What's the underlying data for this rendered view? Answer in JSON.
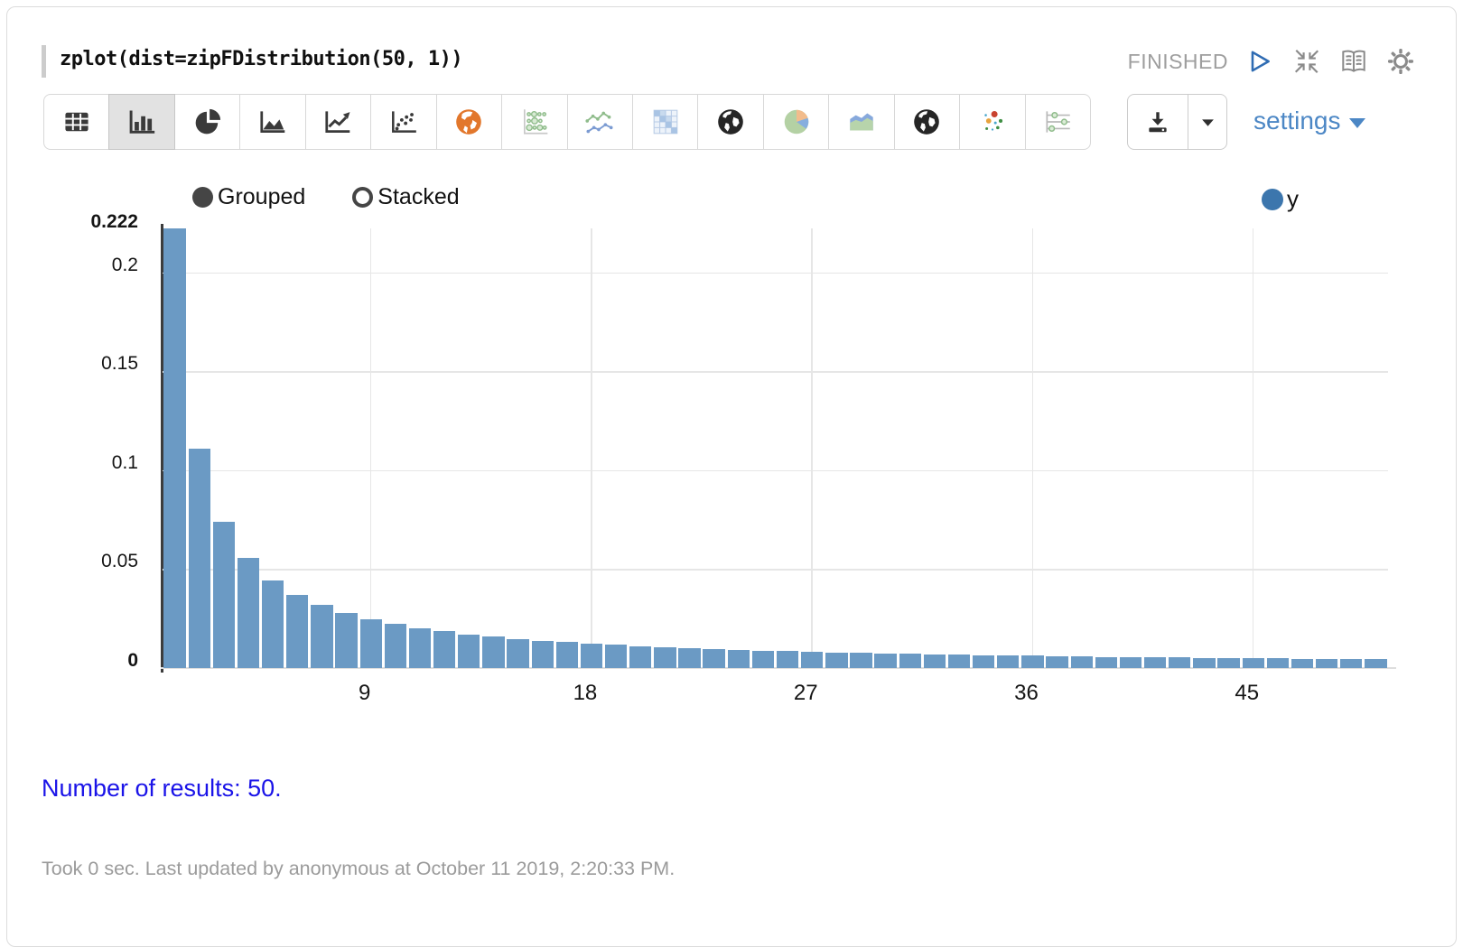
{
  "paragraph": {
    "code": "zplot(dist=zipFDistribution(50, 1))",
    "status": "FINISHED",
    "controls": [
      {
        "icon": "run-icon"
      },
      {
        "icon": "collapse-icon"
      },
      {
        "icon": "book-icon"
      },
      {
        "icon": "gear-icon"
      }
    ]
  },
  "toolbar": {
    "buttons": [
      {
        "icon": "table-icon",
        "active": false
      },
      {
        "icon": "bar-chart-icon",
        "active": true
      },
      {
        "icon": "pie-chart-icon",
        "active": false
      },
      {
        "icon": "area-chart-icon",
        "active": false
      },
      {
        "icon": "line-chart-icon",
        "active": false
      },
      {
        "icon": "scatter-chart-icon",
        "active": false
      },
      {
        "icon": "globe-orange-icon",
        "active": false
      },
      {
        "icon": "bubble-chart-icon",
        "active": false
      },
      {
        "icon": "multi-line-chart-icon",
        "active": false
      },
      {
        "icon": "heatmap-icon",
        "active": false
      },
      {
        "icon": "globe-dark-icon",
        "active": false
      },
      {
        "icon": "pie-color-icon",
        "active": false
      },
      {
        "icon": "area-color-icon",
        "active": false
      },
      {
        "icon": "globe-dark2-icon",
        "active": false
      },
      {
        "icon": "scatter-color-icon",
        "active": false
      },
      {
        "icon": "sliders-icon",
        "active": false
      }
    ],
    "download": {
      "main_icon": "download-icon",
      "caret_icon": "caret-down-icon"
    },
    "settings_label": "settings"
  },
  "chart_controls": {
    "grouped_label": "Grouped",
    "stacked_label": "Stacked",
    "selected": "Grouped"
  },
  "legend": {
    "series": [
      {
        "label": "y",
        "color": "#3c76ad"
      }
    ]
  },
  "chart_data": {
    "type": "bar",
    "title": "",
    "xlabel": "",
    "ylabel": "",
    "series_name": "y",
    "bar_color": "#6b9ac4",
    "x": [
      1,
      2,
      3,
      4,
      5,
      6,
      7,
      8,
      9,
      10,
      11,
      12,
      13,
      14,
      15,
      16,
      17,
      18,
      19,
      20,
      21,
      22,
      23,
      24,
      25,
      26,
      27,
      28,
      29,
      30,
      31,
      32,
      33,
      34,
      35,
      36,
      37,
      38,
      39,
      40,
      41,
      42,
      43,
      44,
      45,
      46,
      47,
      48,
      49,
      50
    ],
    "values": [
      0.222261,
      0.111131,
      0.074087,
      0.055565,
      0.044452,
      0.037044,
      0.031752,
      0.027783,
      0.024696,
      0.022226,
      0.020206,
      0.018522,
      0.017097,
      0.015876,
      0.014817,
      0.013891,
      0.013074,
      0.012348,
      0.011698,
      0.011113,
      0.010584,
      0.010103,
      0.009664,
      0.009261,
      0.00889,
      0.008549,
      0.008232,
      0.007938,
      0.007664,
      0.007409,
      0.00717,
      0.006946,
      0.006735,
      0.006537,
      0.00635,
      0.006174,
      0.006007,
      0.005849,
      0.005699,
      0.005557,
      0.005421,
      0.005292,
      0.005169,
      0.005051,
      0.004939,
      0.004832,
      0.004729,
      0.00463,
      0.004536,
      0.004445
    ],
    "ylim": [
      0,
      0.222261
    ],
    "y_ticks": [
      {
        "value": 0.222,
        "label": "0.222",
        "bold": true
      },
      {
        "value": 0.2,
        "label": "0.2",
        "bold": false
      },
      {
        "value": 0.15,
        "label": "0.15",
        "bold": false
      },
      {
        "value": 0.1,
        "label": "0.1",
        "bold": false
      },
      {
        "value": 0.05,
        "label": "0.05",
        "bold": false
      },
      {
        "value": 0,
        "label": "0",
        "bold": true
      }
    ],
    "x_ticks": [
      9,
      18,
      27,
      36,
      45
    ],
    "grid": true,
    "legend_position": "top-right"
  },
  "result": {
    "summary": "Number of results: 50."
  },
  "footer": {
    "status_line": "Took 0 sec. Last updated by anonymous at October 11 2019, 2:20:33 PM."
  },
  "colors": {
    "bar": "#6b9ac4",
    "legend_dot": "#3c76ad",
    "settings_blue": "#4c87c5",
    "result_blue": "#1a13e8",
    "status_gray": "#9e9e9e",
    "footer_gray": "#9b9b9b"
  }
}
